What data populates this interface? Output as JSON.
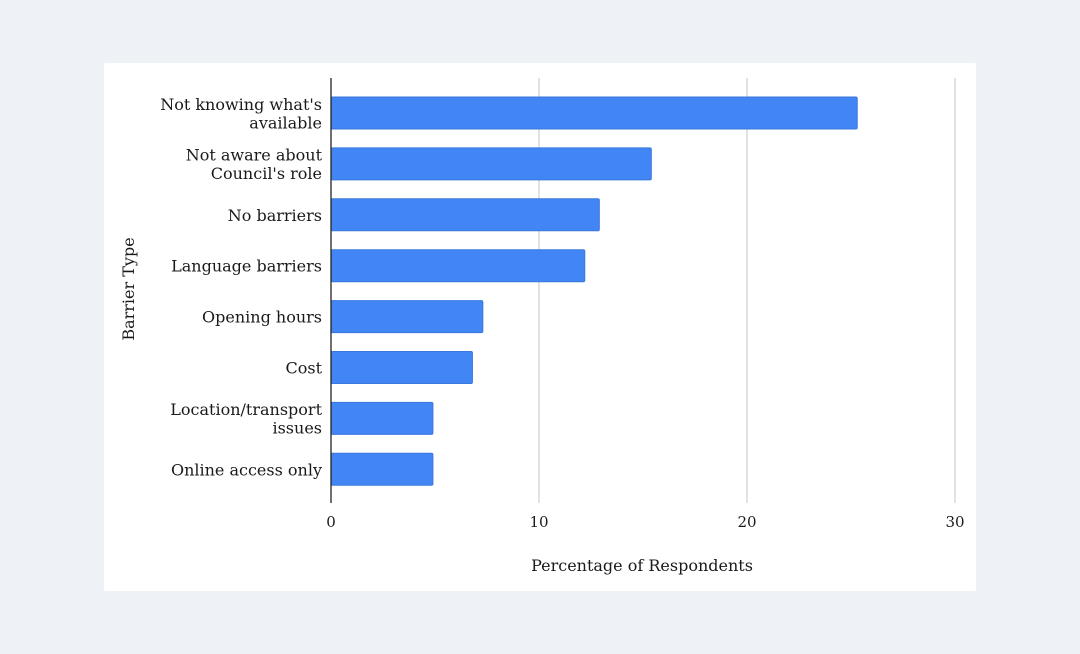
{
  "chart_data": {
    "type": "bar",
    "orientation": "horizontal",
    "categories": [
      "Not knowing what's available",
      "Not aware about Council's role",
      "No barriers",
      "Language barriers",
      "Opening hours",
      "Cost",
      "Location/transport issues",
      "Online access only"
    ],
    "category_lines": [
      [
        "Not knowing what's",
        "available"
      ],
      [
        "Not aware about",
        "Council's role"
      ],
      [
        "No barriers"
      ],
      [
        "Language barriers"
      ],
      [
        "Opening hours"
      ],
      [
        "Cost"
      ],
      [
        "Location/transport",
        "issues"
      ],
      [
        "Online access only"
      ]
    ],
    "values": [
      25.3,
      15.4,
      12.9,
      12.2,
      7.3,
      6.8,
      4.9,
      4.9
    ],
    "xlabel": "Percentage of Respondents",
    "ylabel": "Barrier Type",
    "xlim": [
      0,
      30
    ],
    "xticks": [
      0,
      10,
      20,
      30
    ],
    "grid": "vertical",
    "legend": "none",
    "colors": {
      "bar": "#4285f4",
      "bar_stroke": "#3a78de",
      "grid": "#c4c4c4",
      "axis": "#222222"
    }
  }
}
